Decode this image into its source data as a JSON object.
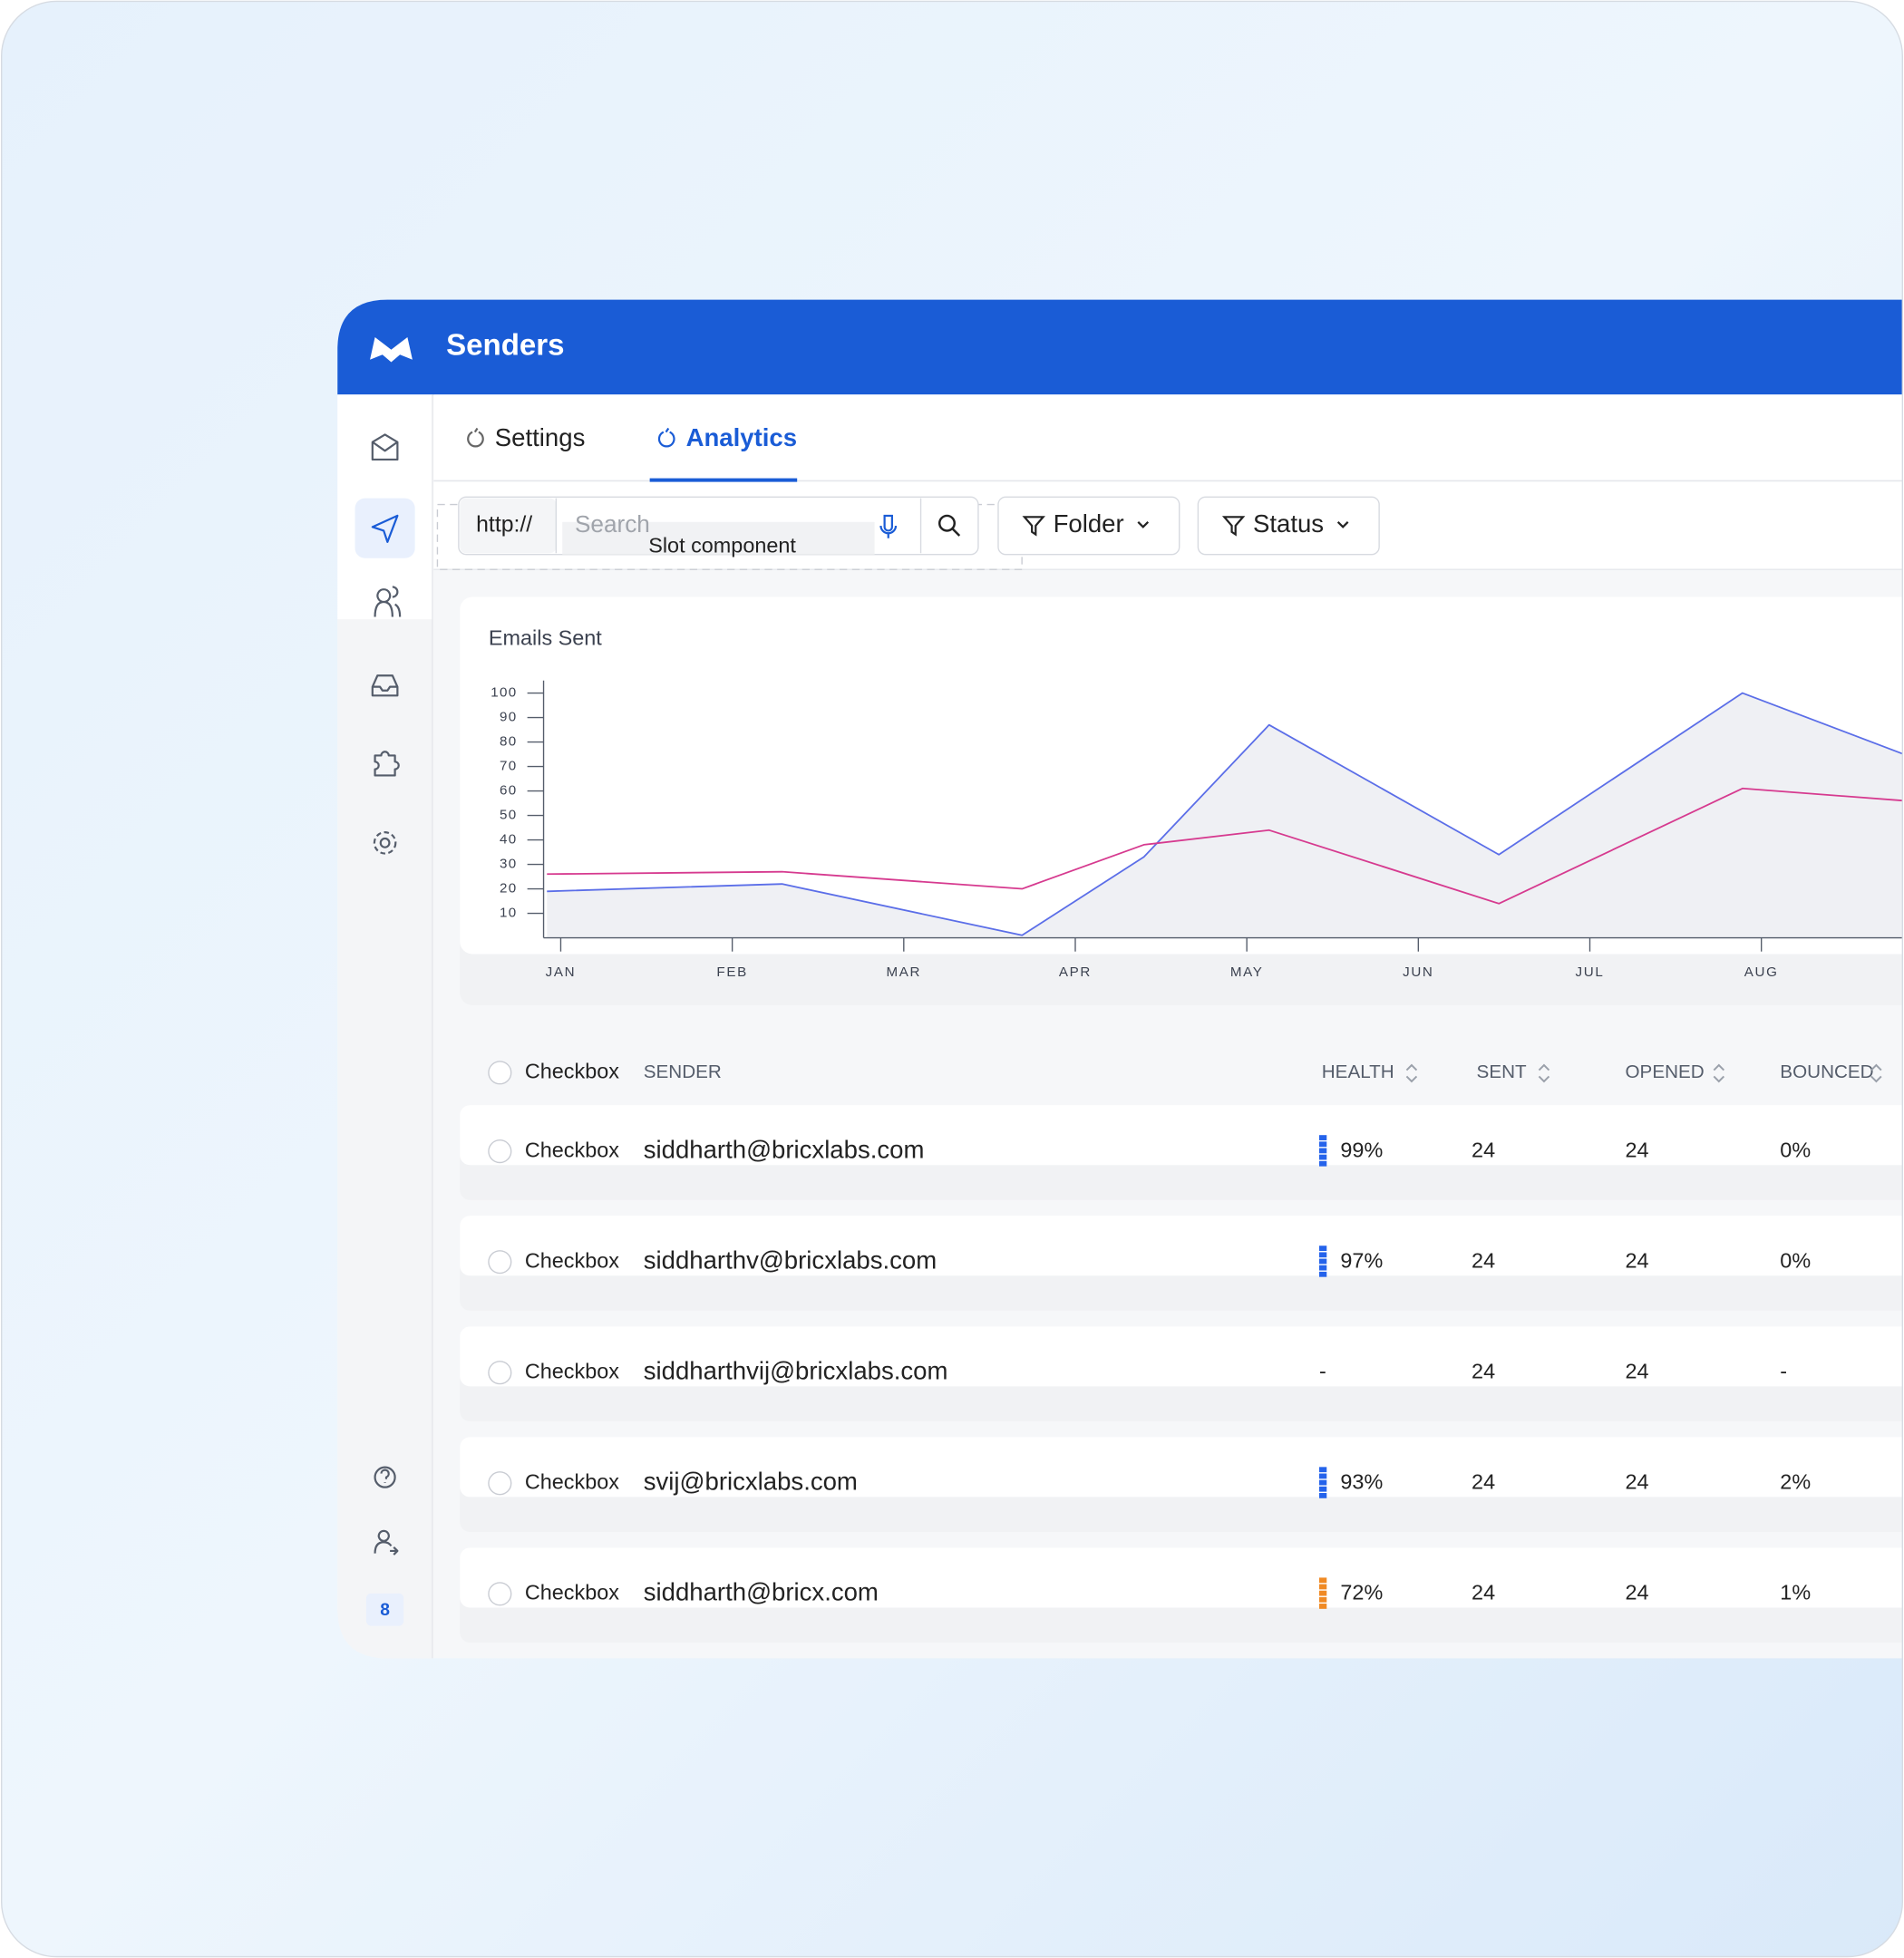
{
  "header": {
    "title": "Senders"
  },
  "sidebar": {
    "badge": "8"
  },
  "tabs": [
    {
      "label": "Settings",
      "active": false
    },
    {
      "label": "Analytics",
      "active": true
    }
  ],
  "search": {
    "prefix": "http://",
    "placeholder": "Search",
    "slot": "Slot component"
  },
  "filters": [
    "Folder",
    "Status"
  ],
  "chart_data": {
    "type": "line",
    "title": "Emails Sent",
    "x": [
      -0.08,
      1.29,
      2.69,
      3.4,
      4.13,
      5.47,
      6.89,
      7.83
    ],
    "xlim": [
      -0.1,
      7.83
    ],
    "xticks": [
      {
        "value": 0,
        "label": "JAN"
      },
      {
        "value": 1,
        "label": "FEB"
      },
      {
        "value": 2,
        "label": "MAR"
      },
      {
        "value": 3,
        "label": "APR"
      },
      {
        "value": 4,
        "label": "MAY"
      },
      {
        "value": 5,
        "label": "JUN"
      },
      {
        "value": 6,
        "label": "JUL"
      },
      {
        "value": 7,
        "label": "AUG"
      }
    ],
    "ylim": [
      0,
      100
    ],
    "yticks": [
      10,
      20,
      30,
      40,
      50,
      60,
      70,
      80,
      90,
      100
    ],
    "series": [
      {
        "color": "#5b6ee8",
        "area": "#eff0f4",
        "values": [
          19,
          22,
          1,
          33,
          87,
          34,
          100,
          75
        ]
      },
      {
        "color": "#d63a8f",
        "values": [
          26,
          27,
          20,
          38,
          44,
          14,
          61,
          56
        ]
      }
    ]
  },
  "table": {
    "columns": [
      "Checkbox",
      "SENDER",
      "HEALTH",
      "SENT",
      "OPENED",
      "BOUNCED"
    ],
    "rows": [
      [
        "Checkbox",
        "siddharth@bricxlabs.com",
        "99%",
        "24",
        "24",
        "0%"
      ],
      [
        "Checkbox",
        "siddharthv@bricxlabs.com",
        "97%",
        "24",
        "24",
        "0%"
      ],
      [
        "Checkbox",
        "siddharthvij@bricxlabs.com",
        "-",
        "24",
        "24",
        "-"
      ],
      [
        "Checkbox",
        "svij@bricxlabs.com",
        "93%",
        "24",
        "24",
        "2%"
      ],
      [
        "Checkbox",
        "siddharth@bricx.com",
        "72%",
        "24",
        "24",
        "1%"
      ]
    ],
    "health_colors": [
      "#2563eb",
      "#2563eb",
      null,
      "#2563eb",
      "#f08a24"
    ]
  }
}
